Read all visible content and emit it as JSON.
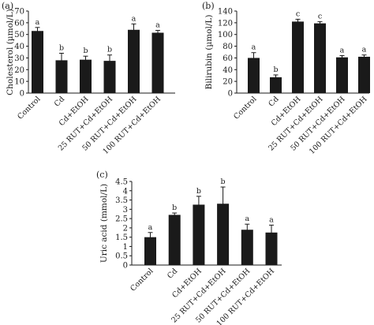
{
  "chart_data": [
    {
      "panel": "(a)",
      "type": "bar",
      "ylabel": "Cholesterol (µmol/L)",
      "ylim": [
        0,
        70
      ],
      "yticks": [
        0,
        10,
        20,
        30,
        40,
        50,
        60,
        70
      ],
      "categories": [
        "Control",
        "Cd",
        "Cd+EtOH",
        "25 RUT+Cd+EtOH",
        "50 RUT+Cd+EtOH",
        "100 RUT+Cd+EtOH"
      ],
      "values": [
        53,
        28,
        28.5,
        27.5,
        54,
        51.5
      ],
      "errors": [
        3,
        6,
        3,
        5,
        5,
        2
      ],
      "significance": [
        "a",
        "b",
        "b",
        "b",
        "a",
        "a"
      ],
      "bar_color": "#1a1a1a",
      "grid": false,
      "legend": "none"
    },
    {
      "panel": "(b)",
      "type": "bar",
      "ylabel": "Bilirubin (µmol/L)",
      "ylim": [
        0,
        140
      ],
      "yticks": [
        0,
        20,
        40,
        60,
        80,
        100,
        120,
        140
      ],
      "categories": [
        "Control",
        "Cd",
        "Cd+EtOH",
        "25 RUT+Cd+EtOH",
        "50 RUT+Cd+EtOH",
        "100 RUT+Cd+EtOH"
      ],
      "values": [
        60,
        27,
        122,
        119,
        61,
        62
      ],
      "errors": [
        9,
        4,
        4,
        3,
        3,
        3
      ],
      "significance": [
        "a",
        "b",
        "c",
        "c",
        "a",
        "a"
      ],
      "bar_color": "#1a1a1a",
      "grid": false,
      "legend": "none"
    },
    {
      "panel": "(c)",
      "type": "bar",
      "ylabel": "Uric acid (mmol/L)",
      "ylim": [
        0,
        4.5
      ],
      "yticks": [
        "0",
        "0.5",
        "1",
        "1.5",
        "2",
        "2.5",
        "3",
        "3.5",
        "4",
        "4.5"
      ],
      "categories": [
        "Control",
        "Cd",
        "Cd+EtOH",
        "25 RUT+Cd+EtOH",
        "50 RUT+Cd+EtOH",
        "100 RUT+Cd+EtOH"
      ],
      "values": [
        1.5,
        2.7,
        3.25,
        3.3,
        1.9,
        1.75
      ],
      "errors": [
        0.25,
        0.1,
        0.45,
        0.9,
        0.3,
        0.4
      ],
      "significance": [
        "a",
        "b",
        "b",
        "b",
        "a",
        "a"
      ],
      "bar_color": "#1a1a1a",
      "grid": false,
      "legend": "none"
    }
  ]
}
